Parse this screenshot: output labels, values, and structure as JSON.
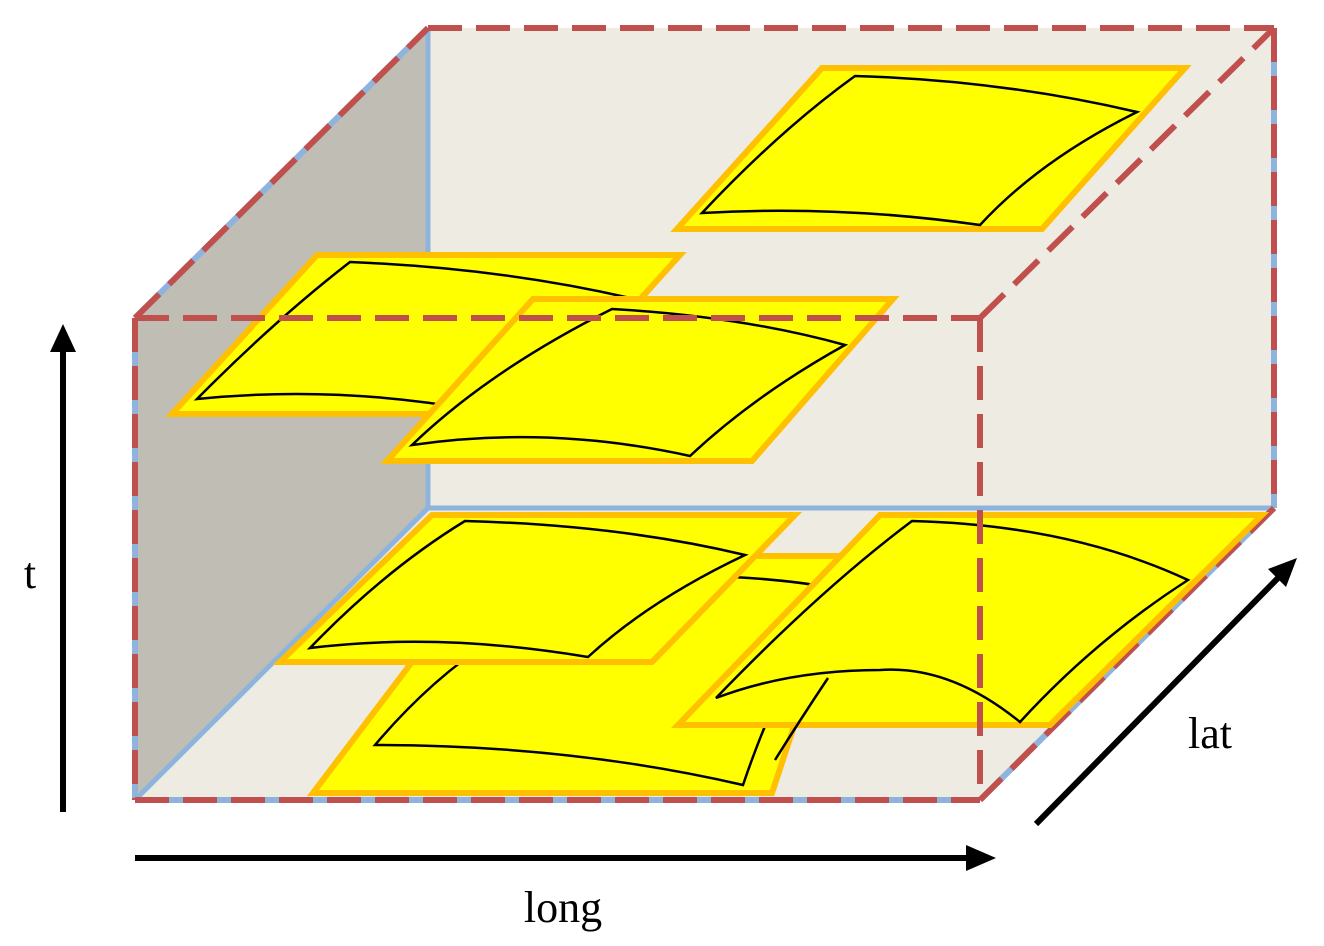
{
  "axes": {
    "t_label": "t",
    "long_label": "long",
    "lat_label": "lat"
  },
  "colors": {
    "box_edge_dashed": "#c0504d",
    "box_edge_blue": "#8eb4dd",
    "left_face": "#bfbdb4",
    "back_face": "#eeebe2",
    "floor_face": "#eeebe2",
    "tile_fill": "#ffff00",
    "tile_border": "#ffc000",
    "swath_line": "#000000",
    "arrow": "#000000"
  }
}
